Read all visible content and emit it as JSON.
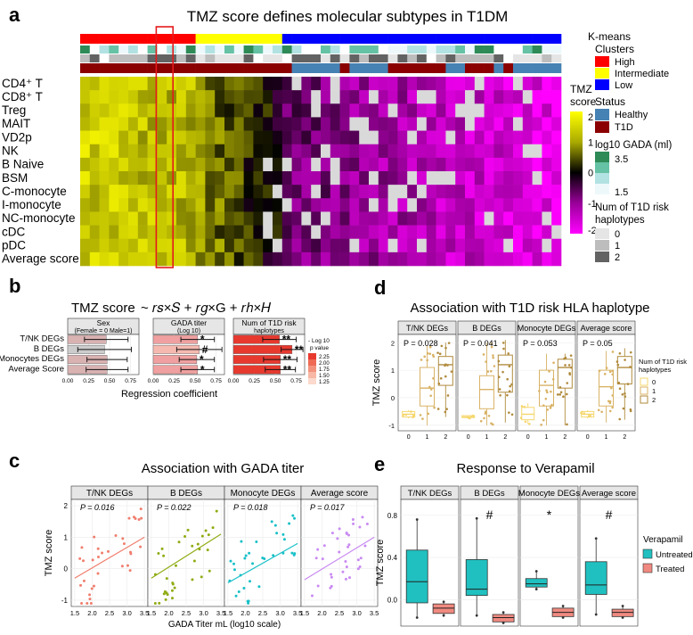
{
  "panels": {
    "a": {
      "letter": "a",
      "title": "TMZ score defines molecular subtypes in T1DM",
      "rows": [
        "CD4⁺ T",
        "CD8⁺ T",
        "Treg",
        "MAIT",
        "VD2p",
        "NK",
        "B Naive",
        "BSM",
        "C-monocyte",
        "I-monocyte",
        "NC-monocyte",
        "cDC",
        "pDC",
        "Average score"
      ],
      "columns": 50,
      "cluster_counts": {
        "High": 12,
        "Intermediate": 9,
        "Low": 29
      },
      "colorbar": {
        "title1": "TMZ",
        "title2": "score",
        "ticks": [
          "2",
          "1",
          "0",
          "-1",
          "-2"
        ],
        "values": [
          2,
          1,
          0,
          -1,
          -2
        ],
        "colors": [
          "#ffff00",
          "#aaaa00",
          "#000000",
          "#990099",
          "#ff00ff"
        ]
      },
      "legend": {
        "kmeans_title1": "K-means",
        "kmeans_title2": "Clusters",
        "kmeans": [
          {
            "label": "High",
            "color": "#ff0000"
          },
          {
            "label": "Intermediate",
            "color": "#ffff00"
          },
          {
            "label": "Low",
            "color": "#0000ff"
          }
        ],
        "status_title": "Status",
        "status": [
          {
            "label": "Healthy",
            "color": "#4682b4"
          },
          {
            "label": "T1D",
            "color": "#8b0000"
          }
        ],
        "gada_title": "log10 GADA (ml)",
        "gada_ticks": [
          "3.5",
          "1.5"
        ],
        "gada_colors": [
          "#2e8b57",
          "#66c2a4",
          "#b2e2e2",
          "#edf8fb"
        ],
        "haplo_title1": "Num of T1D risk",
        "haplo_title2": "haplotypes",
        "haplo": [
          {
            "label": "0",
            "color": "#e5e5e5"
          },
          {
            "label": "1",
            "color": "#bdbdbd"
          },
          {
            "label": "2",
            "color": "#636363"
          }
        ]
      }
    },
    "b": {
      "letter": "b",
      "title": "TMZ score",
      "formula": "~ 𝑟𝑠×𝑆 + 𝑟𝑔×G + 𝑟ℎ×𝐻",
      "xlabel": "Regression coefficient",
      "ticks": [
        "0.00",
        "0.25",
        "0.50",
        "0.75"
      ],
      "tick_values": [
        0,
        0.25,
        0.5,
        0.75
      ],
      "categories": [
        "T/NK DEGs",
        "B DEGs",
        "Monocytes DEGs",
        "Average Score"
      ],
      "facets": [
        {
          "title1": "Sex",
          "title2": "(Female = 0 Male=1)",
          "values": [
            0.46,
            0.44,
            0.47,
            0.47
          ],
          "err": [
            0.26,
            0.32,
            0.24,
            0.25
          ],
          "colors": [
            "#d9b2b2",
            "#cccccc",
            "#d9b2b2",
            "#d9b2b2"
          ],
          "stars": [
            "",
            "",
            "",
            ""
          ]
        },
        {
          "title1": "GADA titer",
          "title2": "(Log 10)",
          "values": [
            0.53,
            0.55,
            0.52,
            0.53
          ],
          "err": [
            0.2,
            0.27,
            0.21,
            0.2
          ],
          "colors": [
            "#f0a0a0",
            "#f5b9b0",
            "#f0a0a0",
            "#f0a0a0"
          ],
          "stars": [
            "*",
            "#",
            "*",
            "*"
          ]
        },
        {
          "title1": "Num of T1D risk",
          "title2": "haplotypes",
          "values": [
            0.55,
            0.7,
            0.56,
            0.56
          ],
          "err": [
            0.2,
            0.13,
            0.2,
            0.18
          ],
          "colors": [
            "#e8392f",
            "#e8392f",
            "#e8392f",
            "#e8392f"
          ],
          "stars": [
            "**",
            "**",
            "**",
            "**"
          ]
        }
      ],
      "legend_title1": "- Log 10",
      "legend_title2": "p value",
      "legend_labels": [
        "2.25",
        "2.00",
        "1.75",
        "1.50",
        "1.25"
      ],
      "legend_colors": [
        "#e8392f",
        "#ee6a55",
        "#f3927c",
        "#f7b8a5",
        "#fbd9cc"
      ]
    },
    "c": {
      "letter": "c",
      "title": "Association with GADA titer",
      "ylabel": "TMZ score",
      "xlabel": "GADA Titer mL (log10 scale)",
      "xticks": [
        "1.5",
        "2.0",
        "2.5",
        "3.0",
        "3.5"
      ],
      "yticks": [
        "2",
        "1",
        "0",
        "-1"
      ],
      "facets": [
        {
          "title": "T/NK DEGs",
          "p": "P = 0.016",
          "color": "#f07e6e"
        },
        {
          "title": "B DEGs",
          "p": "P = 0.022",
          "color": "#8fac14"
        },
        {
          "title": "Monocyte DEGs",
          "p": "P = 0.018",
          "color": "#19c0c8"
        },
        {
          "title": "Average score",
          "p": "P = 0.017",
          "color": "#c98af2"
        }
      ]
    },
    "d": {
      "letter": "d",
      "title": "Association with T1D risk HLA haplotype",
      "ylabel": "TMZ score",
      "xticks": [
        "0",
        "1",
        "2"
      ],
      "yticks": [
        "2",
        "1",
        "0",
        "-1"
      ],
      "legend_title1": "Num of T1D risk",
      "legend_title2": "haplotypes",
      "legend_labels": [
        "0",
        "1",
        "2"
      ],
      "legend_colors": [
        "#f5d76e",
        "#d9b366",
        "#b08a3c"
      ],
      "facets": [
        {
          "title": "T/NK DEGs",
          "p": "P = 0.028"
        },
        {
          "title": "B DEGs",
          "p": "P = 0.041"
        },
        {
          "title": "Monocyte DEGs",
          "p": "P = 0.053"
        },
        {
          "title": "Average score",
          "p": "P = 0.05"
        }
      ]
    },
    "e": {
      "letter": "e",
      "title": "Response to Verapamil",
      "ylabel": "TMZ score",
      "yticks": [
        "0.8",
        "0.4",
        "0.0"
      ],
      "legend_title": "Verapamil",
      "legend": [
        {
          "label": "Untreated",
          "color": "#20c0c0"
        },
        {
          "label": "Treated",
          "color": "#f08a80"
        }
      ],
      "facets": [
        {
          "title": "T/NK DEGs",
          "sig": ""
        },
        {
          "title": "B DEGs",
          "sig": "#"
        },
        {
          "title": "Monocyte DEGs",
          "sig": "*"
        },
        {
          "title": "Average score",
          "sig": "#"
        }
      ]
    }
  },
  "chart_data": [
    {
      "type": "heatmap",
      "title": "TMZ score defines molecular subtypes in T1DM",
      "rows": [
        "CD4⁺ T",
        "CD8⁺ T",
        "Treg",
        "MAIT",
        "VD2p",
        "NK",
        "B Naive",
        "BSM",
        "C-monocyte",
        "I-monocyte",
        "NC-monocyte",
        "cDC",
        "pDC",
        "Average score"
      ],
      "value_range": [
        -2,
        2
      ],
      "clusters": [
        "High",
        "Intermediate",
        "Low"
      ]
    },
    {
      "type": "bar",
      "title": "TMZ score",
      "xlabel": "Regression coefficient",
      "xlim": [
        0,
        0.75
      ],
      "categories": [
        "T/NK DEGs",
        "B DEGs",
        "Monocytes DEGs",
        "Average Score"
      ],
      "series": [
        {
          "name": "Sex",
          "values": [
            0.46,
            0.44,
            0.47,
            0.47
          ]
        },
        {
          "name": "GADA titer",
          "values": [
            0.53,
            0.55,
            0.52,
            0.53
          ]
        },
        {
          "name": "Num of T1D risk haplotypes",
          "values": [
            0.55,
            0.7,
            0.56,
            0.56
          ]
        }
      ]
    },
    {
      "type": "scatter",
      "title": "Association with GADA titer",
      "xlabel": "GADA Titer mL (log10 scale)",
      "ylabel": "TMZ score",
      "xlim": [
        1.4,
        3.6
      ],
      "ylim": [
        -1.2,
        2.2
      ],
      "series": [
        {
          "name": "T/NK DEGs",
          "fit": [
            [
              1.5,
              -0.3
            ],
            [
              3.5,
              1.0
            ]
          ]
        },
        {
          "name": "B DEGs",
          "fit": [
            [
              1.5,
              -0.3
            ],
            [
              3.5,
              1.1
            ]
          ]
        },
        {
          "name": "Monocyte DEGs",
          "fit": [
            [
              1.5,
              -0.45
            ],
            [
              3.5,
              0.8
            ]
          ]
        },
        {
          "name": "Average score",
          "fit": [
            [
              1.5,
              -0.35
            ],
            [
              3.5,
              1.0
            ]
          ]
        }
      ]
    },
    {
      "type": "box",
      "title": "Association with T1D risk HLA haplotype",
      "ylabel": "TMZ score",
      "categories": [
        "0",
        "1",
        "2"
      ],
      "ylim": [
        -1.2,
        2.3
      ],
      "series": [
        {
          "name": "T/NK DEGs",
          "median": [
            -0.6,
            0.35,
            1.2
          ],
          "q1": [
            -0.7,
            -0.3,
            0.45
          ],
          "q3": [
            -0.5,
            1.1,
            1.5
          ],
          "min": [
            -0.75,
            -1.0,
            -0.7
          ],
          "max": [
            -0.45,
            1.9,
            2.0
          ]
        },
        {
          "name": "B DEGs",
          "median": [
            -0.7,
            0.3,
            1.2
          ],
          "q1": [
            -0.72,
            -0.4,
            0.2
          ],
          "q3": [
            -0.65,
            0.8,
            1.55
          ],
          "min": [
            -0.75,
            -1.0,
            -0.9
          ],
          "max": [
            -0.65,
            2.0,
            2.1
          ]
        },
        {
          "name": "Monocyte DEGs",
          "median": [
            -0.6,
            0.45,
            1.1
          ],
          "q1": [
            -0.8,
            -0.3,
            0.35
          ],
          "q3": [
            -0.35,
            1.0,
            1.4
          ],
          "min": [
            -0.95,
            -1.0,
            -1.0
          ],
          "max": [
            -0.2,
            1.6,
            1.6
          ]
        },
        {
          "name": "Average score",
          "median": [
            -0.6,
            0.4,
            1.1
          ],
          "q1": [
            -0.7,
            -0.3,
            0.5
          ],
          "q3": [
            -0.5,
            1.0,
            1.5
          ],
          "min": [
            -0.75,
            -0.9,
            -0.8
          ],
          "max": [
            -0.45,
            1.7,
            1.8
          ]
        }
      ]
    },
    {
      "type": "box",
      "title": "Response to Verapamil",
      "ylabel": "TMZ score",
      "categories": [
        "Untreated",
        "Treated"
      ],
      "ylim": [
        -0.25,
        0.95
      ],
      "series": [
        {
          "name": "T/NK DEGs",
          "median": [
            0.17,
            -0.08
          ],
          "q1": [
            -0.03,
            -0.13
          ],
          "q3": [
            0.47,
            -0.04
          ],
          "min": [
            -0.17,
            -0.15
          ],
          "max": [
            0.76,
            -0.02
          ]
        },
        {
          "name": "B DEGs",
          "median": [
            0.1,
            -0.17
          ],
          "q1": [
            0.04,
            -0.21
          ],
          "q3": [
            0.38,
            -0.14
          ],
          "min": [
            -0.15,
            -0.22
          ],
          "max": [
            0.77,
            -0.12
          ]
        },
        {
          "name": "Monocyte DEGs",
          "median": [
            0.15,
            -0.12
          ],
          "q1": [
            0.12,
            -0.16
          ],
          "q3": [
            0.2,
            -0.08
          ],
          "min": [
            0.1,
            -0.17
          ],
          "max": [
            0.27,
            -0.06
          ]
        },
        {
          "name": "Average score",
          "median": [
            0.14,
            -0.12
          ],
          "q1": [
            0.05,
            -0.16
          ],
          "q3": [
            0.36,
            -0.09
          ],
          "min": [
            -0.14,
            -0.17
          ],
          "max": [
            0.58,
            -0.06
          ]
        }
      ]
    }
  ]
}
